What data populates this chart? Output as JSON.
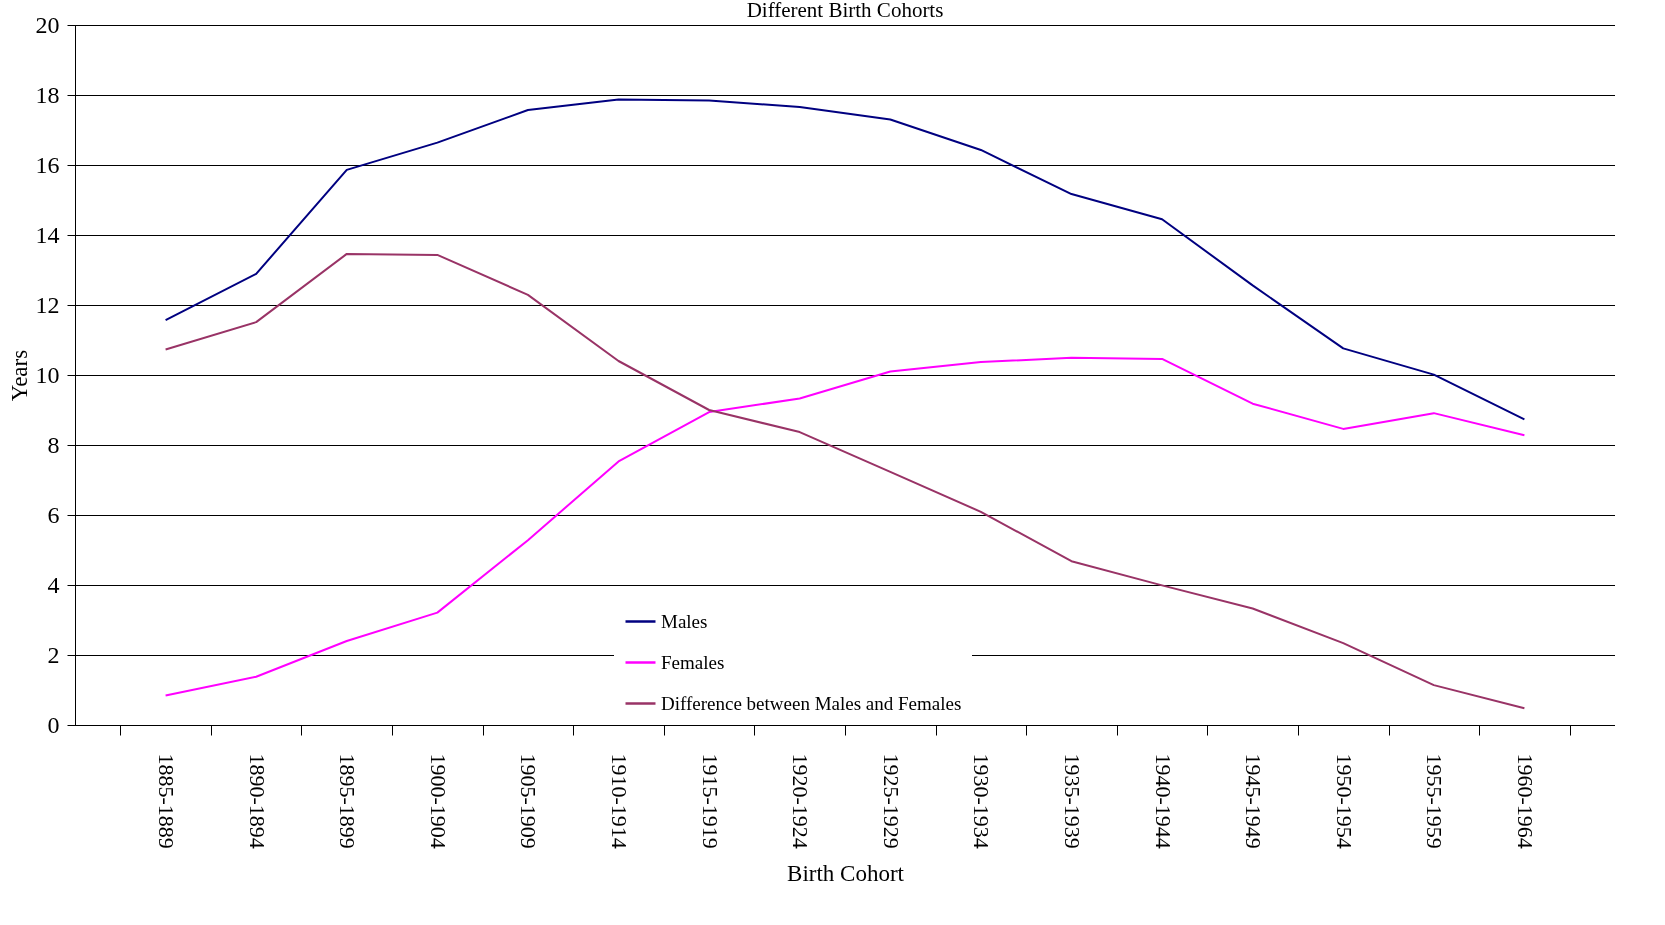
{
  "chart_data": {
    "type": "line",
    "title": "Different Birth Cohorts",
    "xlabel": "Birth Cohort",
    "ylabel": "Years",
    "categories": [
      "1885-1889",
      "1890-1894",
      "1895-1899",
      "1900-1904",
      "1905-1909",
      "1910-1914",
      "1915-1919",
      "1920-1924",
      "1925-1929",
      "1930-1934",
      "1935-1939",
      "1940-1944",
      "1945-1949",
      "1950-1954",
      "1955-1959",
      "1960-1964"
    ],
    "series": [
      {
        "name": "Males",
        "color": "#000080",
        "values": [
          11.57,
          12.89,
          15.86,
          16.64,
          17.57,
          17.87,
          17.84,
          17.66,
          17.3,
          16.43,
          15.17,
          14.45,
          12.56,
          10.76,
          10.01,
          8.73
        ]
      },
      {
        "name": "Females",
        "color": "#ff00ff",
        "values": [
          0.84,
          1.38,
          2.4,
          3.21,
          5.28,
          7.53,
          8.94,
          9.33,
          10.1,
          10.37,
          10.49,
          10.46,
          9.18,
          8.46,
          8.91,
          8.28
        ]
      },
      {
        "name": "Difference between Males and Females",
        "color": "#993366",
        "values": [
          10.73,
          11.51,
          13.46,
          13.43,
          12.29,
          10.4,
          9.0,
          8.37,
          7.23,
          6.09,
          4.68,
          3.99,
          3.33,
          2.34,
          1.14,
          0.48
        ]
      }
    ],
    "ylim": [
      0,
      20
    ],
    "yticks": [
      0,
      2,
      4,
      6,
      8,
      10,
      12,
      14,
      16,
      18,
      20
    ],
    "grid": "y",
    "legend": "bottom",
    "marker": "none",
    "line_style": "solid"
  }
}
